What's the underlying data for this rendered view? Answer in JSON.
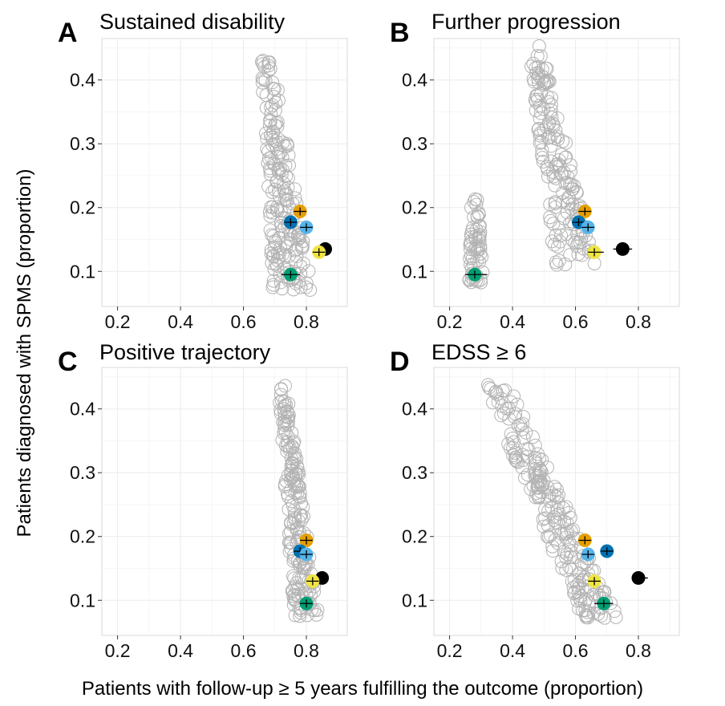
{
  "chart_data": [
    {
      "type": "scatter",
      "letter": "A",
      "title": "Sustained disability",
      "xlim": [
        0.15,
        0.93
      ],
      "ylim": [
        0.045,
        0.465
      ],
      "xticks": [
        0.2,
        0.4,
        0.6,
        0.8
      ],
      "yticks": [
        0.1,
        0.2,
        0.3,
        0.4
      ],
      "xtick_labels": [
        "0.2",
        "0.4",
        "0.6",
        "0.8"
      ],
      "ytick_labels": [
        "0.1",
        "0.2",
        "0.3",
        "0.4"
      ],
      "grid": true,
      "cloud": {
        "x_top": 0.67,
        "y_top": 0.455,
        "x_bottom_min": 0.69,
        "x_bottom_max": 0.82,
        "y_bottom": 0.07,
        "spread_top": 0.015,
        "n": 190,
        "seed": 11
      },
      "highlighted": [
        {
          "x": 0.78,
          "y": 0.194,
          "ci": [
            0.76,
            0.8
          ],
          "color": "#e69f00"
        },
        {
          "x": 0.75,
          "y": 0.177,
          "ci": [
            0.73,
            0.77
          ],
          "color": "#0072b2"
        },
        {
          "x": 0.8,
          "y": 0.169,
          "ci": [
            0.78,
            0.82
          ],
          "color": "#56b4e9"
        },
        {
          "x": 0.86,
          "y": 0.135,
          "ci": [
            0.84,
            0.88
          ],
          "color": "#000000"
        },
        {
          "x": 0.84,
          "y": 0.13,
          "ci": [
            0.82,
            0.86
          ],
          "color": "#f0e442"
        },
        {
          "x": 0.75,
          "y": 0.095,
          "ci": [
            0.72,
            0.78
          ],
          "color": "#009e73"
        }
      ]
    },
    {
      "type": "scatter",
      "letter": "B",
      "title": "Further progression",
      "xlim": [
        0.15,
        0.93
      ],
      "ylim": [
        0.045,
        0.465
      ],
      "xticks": [
        0.2,
        0.4,
        0.6,
        0.8
      ],
      "yticks": [
        0.1,
        0.2,
        0.3,
        0.4
      ],
      "xtick_labels": [
        "0.2",
        "0.4",
        "0.6",
        "0.8"
      ],
      "ytick_labels": [
        "0.1",
        "0.2",
        "0.3",
        "0.4"
      ],
      "grid": true,
      "cloud": {
        "x_top": 0.47,
        "y_top": 0.455,
        "x_bottom_min": 0.53,
        "x_bottom_max": 0.67,
        "y_bottom": 0.11,
        "spread_top": 0.02,
        "n": 160,
        "seed": 23
      },
      "cloud2": {
        "x_top": 0.28,
        "y_top": 0.225,
        "x_bottom_min": 0.26,
        "x_bottom_max": 0.31,
        "y_bottom": 0.08,
        "spread_top": 0.01,
        "n": 60,
        "seed": 29
      },
      "highlighted": [
        {
          "x": 0.63,
          "y": 0.194,
          "ci": [
            0.61,
            0.65
          ],
          "color": "#e69f00"
        },
        {
          "x": 0.61,
          "y": 0.177,
          "ci": [
            0.59,
            0.63
          ],
          "color": "#0072b2"
        },
        {
          "x": 0.64,
          "y": 0.169,
          "ci": [
            0.62,
            0.66
          ],
          "color": "#56b4e9"
        },
        {
          "x": 0.75,
          "y": 0.135,
          "ci": [
            0.72,
            0.78
          ],
          "color": "#000000"
        },
        {
          "x": 0.66,
          "y": 0.13,
          "ci": [
            0.64,
            0.69
          ],
          "color": "#f0e442"
        },
        {
          "x": 0.28,
          "y": 0.095,
          "ci": [
            0.25,
            0.32
          ],
          "color": "#009e73"
        }
      ]
    },
    {
      "type": "scatter",
      "letter": "C",
      "title": "Positive trajectory",
      "xlim": [
        0.15,
        0.93
      ],
      "ylim": [
        0.045,
        0.465
      ],
      "xticks": [
        0.2,
        0.4,
        0.6,
        0.8
      ],
      "yticks": [
        0.1,
        0.2,
        0.3,
        0.4
      ],
      "xtick_labels": [
        "0.2",
        "0.4",
        "0.6",
        "0.8"
      ],
      "ytick_labels": [
        "0.1",
        "0.2",
        "0.3",
        "0.4"
      ],
      "grid": true,
      "cloud": {
        "x_top": 0.72,
        "y_top": 0.455,
        "x_bottom_min": 0.76,
        "x_bottom_max": 0.84,
        "y_bottom": 0.07,
        "spread_top": 0.012,
        "n": 180,
        "seed": 37
      },
      "highlighted": [
        {
          "x": 0.8,
          "y": 0.194,
          "ci": [
            0.78,
            0.82
          ],
          "color": "#e69f00"
        },
        {
          "x": 0.78,
          "y": 0.177,
          "ci": [
            0.76,
            0.8
          ],
          "color": "#0072b2"
        },
        {
          "x": 0.8,
          "y": 0.172,
          "ci": [
            0.78,
            0.82
          ],
          "color": "#56b4e9"
        },
        {
          "x": 0.85,
          "y": 0.135,
          "ci": [
            0.83,
            0.87
          ],
          "color": "#000000"
        },
        {
          "x": 0.82,
          "y": 0.13,
          "ci": [
            0.8,
            0.84
          ],
          "color": "#f0e442"
        },
        {
          "x": 0.8,
          "y": 0.095,
          "ci": [
            0.78,
            0.82
          ],
          "color": "#009e73"
        }
      ]
    },
    {
      "type": "scatter",
      "letter": "D",
      "title": "EDSS ≥ 6",
      "xlim": [
        0.15,
        0.93
      ],
      "ylim": [
        0.045,
        0.465
      ],
      "xticks": [
        0.2,
        0.4,
        0.6,
        0.8
      ],
      "yticks": [
        0.1,
        0.2,
        0.3,
        0.4
      ],
      "xtick_labels": [
        "0.2",
        "0.4",
        "0.6",
        "0.8"
      ],
      "ytick_labels": [
        "0.1",
        "0.2",
        "0.3",
        "0.4"
      ],
      "grid": true,
      "cloud": {
        "x_top": 0.33,
        "y_top": 0.455,
        "x_bottom_min": 0.62,
        "x_bottom_max": 0.74,
        "y_bottom": 0.07,
        "spread_top": 0.04,
        "n": 210,
        "seed": 41
      },
      "highlighted": [
        {
          "x": 0.63,
          "y": 0.194,
          "ci": [
            0.61,
            0.65
          ],
          "color": "#e69f00"
        },
        {
          "x": 0.7,
          "y": 0.177,
          "ci": [
            0.68,
            0.72
          ],
          "color": "#0072b2"
        },
        {
          "x": 0.64,
          "y": 0.172,
          "ci": [
            0.62,
            0.66
          ],
          "color": "#56b4e9"
        },
        {
          "x": 0.8,
          "y": 0.135,
          "ci": [
            0.78,
            0.83
          ],
          "color": "#000000"
        },
        {
          "x": 0.66,
          "y": 0.13,
          "ci": [
            0.64,
            0.68
          ],
          "color": "#f0e442"
        },
        {
          "x": 0.69,
          "y": 0.095,
          "ci": [
            0.66,
            0.72
          ],
          "color": "#009e73"
        }
      ]
    }
  ],
  "axis_titles": {
    "y": "Patients diagnosed with SPMS (proportion)",
    "x": "Patients with follow-up ≥ 5 years fulfilling the outcome (proportion)"
  }
}
